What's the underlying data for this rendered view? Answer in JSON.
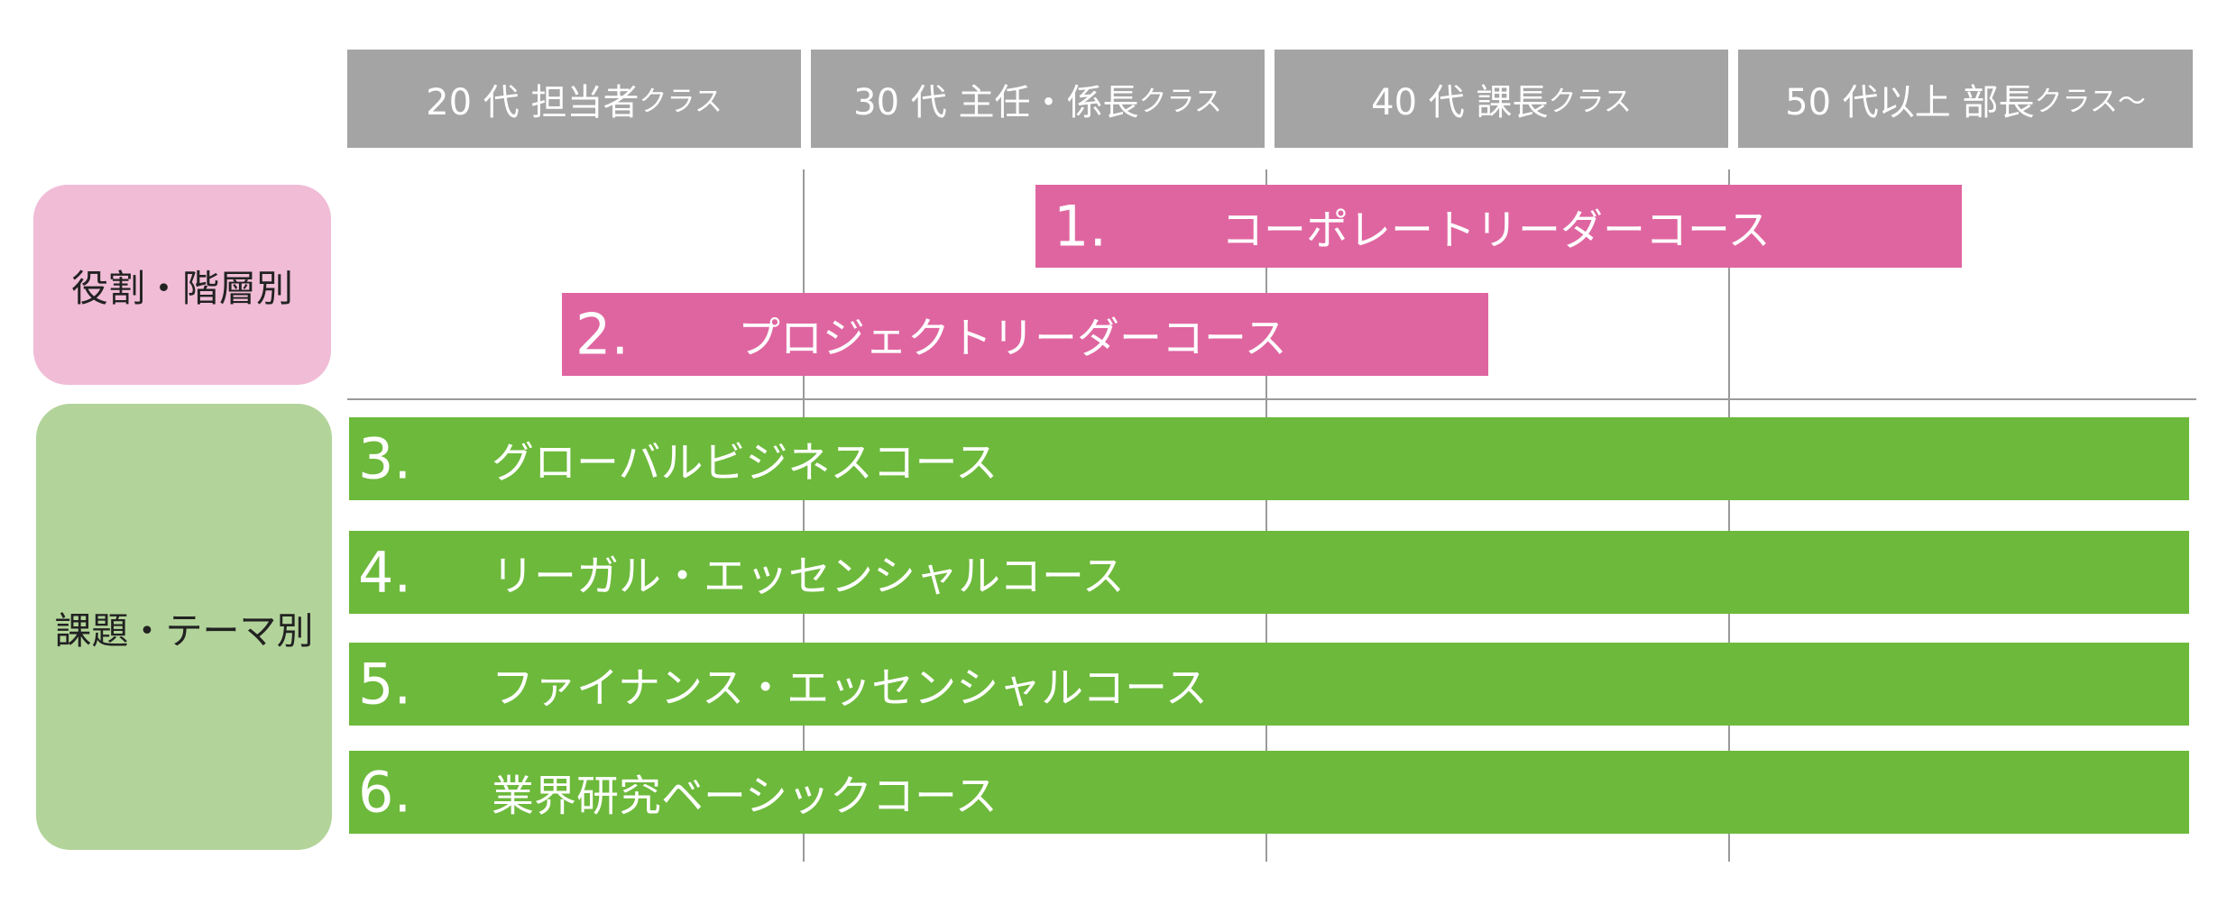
{
  "header": [
    {
      "main": "20 代  担当者",
      "small": "クラス"
    },
    {
      "main": "30 代  主任・係長",
      "small": "クラス"
    },
    {
      "main": "40 代  課長",
      "small": "クラス"
    },
    {
      "main": "50 代以上  部長",
      "small": "クラス〜"
    }
  ],
  "categories": {
    "role": "役割・階層別",
    "theme": "課題・テーマ別"
  },
  "courses": [
    {
      "num": "1.",
      "label": "コーポレートリーダーコース",
      "color": "#df65a0"
    },
    {
      "num": "2.",
      "label": "プロジェクトリーダーコース",
      "color": "#df65a0"
    },
    {
      "num": "3.",
      "label": "グローバルビジネスコース",
      "color": "#6db93b"
    },
    {
      "num": "4.",
      "label": "リーガル・エッセンシャルコース",
      "color": "#6db93b"
    },
    {
      "num": "5.",
      "label": "ファイナンス・エッセンシャルコース",
      "color": "#6db93b"
    },
    {
      "num": "6.",
      "label": "業界研究ベーシックコース",
      "color": "#6db93b"
    }
  ]
}
